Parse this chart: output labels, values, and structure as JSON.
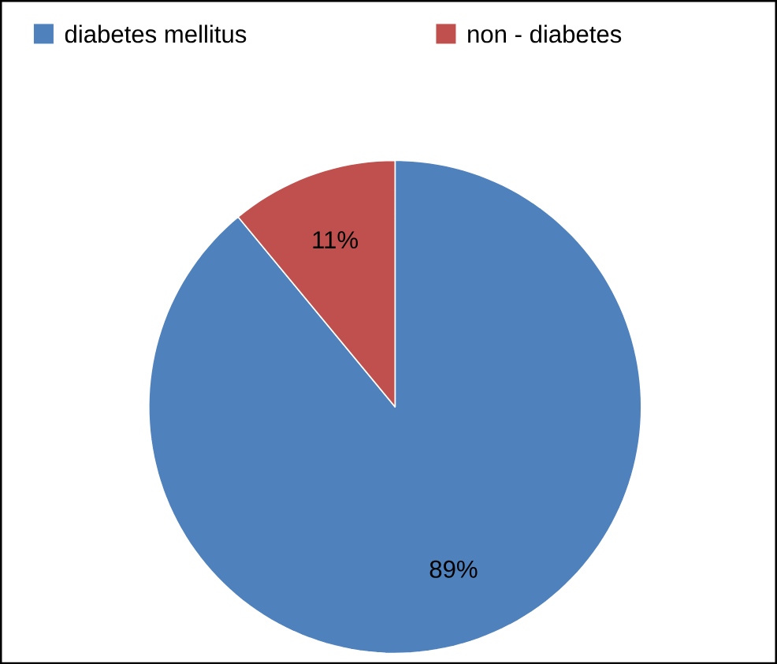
{
  "chart_data": {
    "type": "pie",
    "categories": [
      "diabetes mellitus",
      "non - diabetes"
    ],
    "values": [
      89,
      11
    ],
    "value_labels": [
      "89%",
      "11%"
    ],
    "colors": [
      "#4f81bd",
      "#c0504d"
    ],
    "legend": "top"
  }
}
